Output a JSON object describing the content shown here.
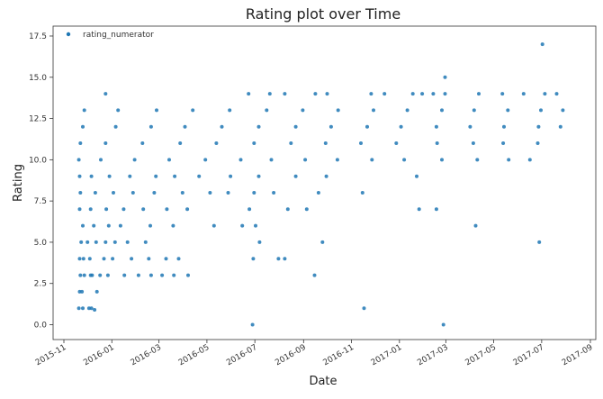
{
  "chart_data": {
    "type": "scatter",
    "title": "Rating plot over Time",
    "xlabel": "Date",
    "ylabel": "Rating",
    "xlim": [
      "2015-11-01",
      "2017-09-01"
    ],
    "ylim": [
      -0.9,
      18.1
    ],
    "x_ticks": [
      "2015-11",
      "2016-01",
      "2016-03",
      "2016-05",
      "2016-07",
      "2016-09",
      "2016-11",
      "2017-01",
      "2017-03",
      "2017-05",
      "2017-07",
      "2017-09"
    ],
    "y_ticks": [
      "0.0",
      "2.5",
      "5.0",
      "7.5",
      "10.0",
      "12.5",
      "15.0",
      "17.5"
    ],
    "grid": false,
    "legend_position": "top-left",
    "marker_color": "#1f77b4",
    "series": [
      {
        "name": "rating_numerator",
        "points": [
          [
            "2016-06-28",
            0
          ],
          [
            "2017-02-26",
            0
          ],
          [
            "2015-12-10",
            0.9
          ],
          [
            "2015-11-20",
            1
          ],
          [
            "2015-11-25",
            1
          ],
          [
            "2015-12-03",
            1
          ],
          [
            "2015-12-06",
            1
          ],
          [
            "2016-11-17",
            1
          ],
          [
            "2015-11-21",
            2
          ],
          [
            "2015-11-24",
            2
          ],
          [
            "2015-12-13",
            2
          ],
          [
            "2015-11-22",
            3
          ],
          [
            "2015-11-27",
            3
          ],
          [
            "2015-12-05",
            3
          ],
          [
            "2015-12-07",
            3
          ],
          [
            "2015-12-17",
            3
          ],
          [
            "2015-12-27",
            3
          ],
          [
            "2016-01-17",
            3
          ],
          [
            "2016-02-04",
            3
          ],
          [
            "2016-02-20",
            3
          ],
          [
            "2016-03-05",
            3
          ],
          [
            "2016-03-20",
            3
          ],
          [
            "2016-04-07",
            3
          ],
          [
            "2016-09-15",
            3
          ],
          [
            "2015-11-21",
            4
          ],
          [
            "2015-11-26",
            4
          ],
          [
            "2015-12-04",
            4
          ],
          [
            "2015-12-22",
            4
          ],
          [
            "2016-01-02",
            4
          ],
          [
            "2016-01-26",
            4
          ],
          [
            "2016-02-17",
            4
          ],
          [
            "2016-03-10",
            4
          ],
          [
            "2016-03-26",
            4
          ],
          [
            "2016-06-29",
            4
          ],
          [
            "2016-07-31",
            4
          ],
          [
            "2016-08-08",
            4
          ],
          [
            "2015-11-23",
            5
          ],
          [
            "2015-12-01",
            5
          ],
          [
            "2015-12-12",
            5
          ],
          [
            "2015-12-24",
            5
          ],
          [
            "2016-01-05",
            5
          ],
          [
            "2016-01-21",
            5
          ],
          [
            "2016-02-13",
            5
          ],
          [
            "2016-07-07",
            5
          ],
          [
            "2016-09-25",
            5
          ],
          [
            "2017-06-28",
            5
          ],
          [
            "2015-11-25",
            6
          ],
          [
            "2015-12-09",
            6
          ],
          [
            "2015-12-28",
            6
          ],
          [
            "2016-01-12",
            6
          ],
          [
            "2016-02-19",
            6
          ],
          [
            "2016-03-19",
            6
          ],
          [
            "2016-05-10",
            6
          ],
          [
            "2016-06-15",
            6
          ],
          [
            "2016-07-02",
            6
          ],
          [
            "2017-04-08",
            6
          ],
          [
            "2015-11-21",
            7
          ],
          [
            "2015-12-05",
            7
          ],
          [
            "2015-12-25",
            7
          ],
          [
            "2016-01-16",
            7
          ],
          [
            "2016-02-10",
            7
          ],
          [
            "2016-03-11",
            7
          ],
          [
            "2016-04-06",
            7
          ],
          [
            "2016-06-24",
            7
          ],
          [
            "2016-08-12",
            7
          ],
          [
            "2016-09-05",
            7
          ],
          [
            "2017-01-26",
            7
          ],
          [
            "2017-02-17",
            7
          ],
          [
            "2015-11-22",
            8
          ],
          [
            "2015-12-11",
            8
          ],
          [
            "2016-01-03",
            8
          ],
          [
            "2016-01-28",
            8
          ],
          [
            "2016-02-24",
            8
          ],
          [
            "2016-03-31",
            8
          ],
          [
            "2016-05-05",
            8
          ],
          [
            "2016-05-28",
            8
          ],
          [
            "2016-06-30",
            8
          ],
          [
            "2016-07-25",
            8
          ],
          [
            "2016-09-20",
            8
          ],
          [
            "2016-11-15",
            8
          ],
          [
            "2015-11-21",
            9
          ],
          [
            "2015-12-06",
            9
          ],
          [
            "2015-12-29",
            9
          ],
          [
            "2016-01-24",
            9
          ],
          [
            "2016-02-26",
            9
          ],
          [
            "2016-03-21",
            9
          ],
          [
            "2016-04-21",
            9
          ],
          [
            "2016-05-31",
            9
          ],
          [
            "2016-07-06",
            9
          ],
          [
            "2016-08-22",
            9
          ],
          [
            "2016-09-30",
            9
          ],
          [
            "2017-01-23",
            9
          ],
          [
            "2015-11-20",
            10
          ],
          [
            "2015-12-18",
            10
          ],
          [
            "2016-01-30",
            10
          ],
          [
            "2016-03-14",
            10
          ],
          [
            "2016-04-29",
            10
          ],
          [
            "2016-06-13",
            10
          ],
          [
            "2016-07-22",
            10
          ],
          [
            "2016-09-03",
            10
          ],
          [
            "2016-10-14",
            10
          ],
          [
            "2016-11-27",
            10
          ],
          [
            "2017-01-07",
            10
          ],
          [
            "2017-02-24",
            10
          ],
          [
            "2017-04-10",
            10
          ],
          [
            "2017-05-20",
            10
          ],
          [
            "2017-06-16",
            10
          ],
          [
            "2015-11-22",
            11
          ],
          [
            "2015-12-24",
            11
          ],
          [
            "2016-02-09",
            11
          ],
          [
            "2016-03-28",
            11
          ],
          [
            "2016-05-13",
            11
          ],
          [
            "2016-06-30",
            11
          ],
          [
            "2016-08-16",
            11
          ],
          [
            "2016-09-29",
            11
          ],
          [
            "2016-11-13",
            11
          ],
          [
            "2016-12-28",
            11
          ],
          [
            "2017-02-18",
            11
          ],
          [
            "2017-04-05",
            11
          ],
          [
            "2017-05-13",
            11
          ],
          [
            "2017-06-26",
            11
          ],
          [
            "2015-11-25",
            12
          ],
          [
            "2016-01-06",
            12
          ],
          [
            "2016-02-20",
            12
          ],
          [
            "2016-04-03",
            12
          ],
          [
            "2016-05-20",
            12
          ],
          [
            "2016-07-06",
            12
          ],
          [
            "2016-08-22",
            12
          ],
          [
            "2016-10-06",
            12
          ],
          [
            "2016-11-21",
            12
          ],
          [
            "2017-01-03",
            12
          ],
          [
            "2017-02-17",
            12
          ],
          [
            "2017-04-01",
            12
          ],
          [
            "2017-05-14",
            12
          ],
          [
            "2017-06-27",
            12
          ],
          [
            "2017-07-25",
            12
          ],
          [
            "2015-11-27",
            13
          ],
          [
            "2016-01-09",
            13
          ],
          [
            "2016-02-27",
            13
          ],
          [
            "2016-04-13",
            13
          ],
          [
            "2016-05-30",
            13
          ],
          [
            "2016-07-16",
            13
          ],
          [
            "2016-08-31",
            13
          ],
          [
            "2016-10-15",
            13
          ],
          [
            "2016-11-29",
            13
          ],
          [
            "2017-01-11",
            13
          ],
          [
            "2017-02-24",
            13
          ],
          [
            "2017-04-06",
            13
          ],
          [
            "2017-05-19",
            13
          ],
          [
            "2017-06-30",
            13
          ],
          [
            "2017-07-28",
            13
          ],
          [
            "2015-12-24",
            14
          ],
          [
            "2016-06-23",
            14
          ],
          [
            "2016-07-20",
            14
          ],
          [
            "2016-08-08",
            14
          ],
          [
            "2016-09-16",
            14
          ],
          [
            "2016-10-01",
            14
          ],
          [
            "2016-11-26",
            14
          ],
          [
            "2016-12-13",
            14
          ],
          [
            "2017-01-18",
            14
          ],
          [
            "2017-01-30",
            14
          ],
          [
            "2017-02-13",
            14
          ],
          [
            "2017-02-28",
            14
          ],
          [
            "2017-04-12",
            14
          ],
          [
            "2017-05-12",
            14
          ],
          [
            "2017-06-08",
            14
          ],
          [
            "2017-07-05",
            14
          ],
          [
            "2017-07-20",
            14
          ],
          [
            "2017-02-28",
            15
          ],
          [
            "2017-07-02",
            17
          ]
        ]
      }
    ]
  }
}
